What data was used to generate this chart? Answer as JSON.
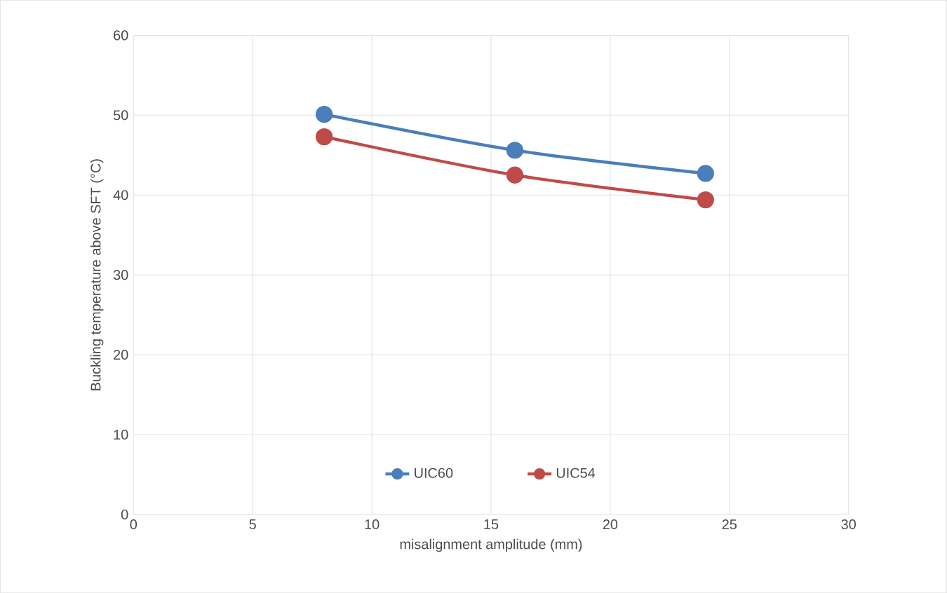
{
  "chart_data": {
    "type": "line",
    "xlabel": "misalignment amplitude (mm)",
    "ylabel": "Buckling temperature above SFT (°C)",
    "x": [
      8,
      16,
      24
    ],
    "series": [
      {
        "name": "UIC60",
        "color": "#4a7ebb",
        "values": [
          50.1,
          45.6,
          42.7
        ]
      },
      {
        "name": "UIC54",
        "color": "#be4b48",
        "values": [
          47.3,
          42.5,
          39.4
        ]
      }
    ],
    "xlim": [
      0,
      30
    ],
    "ylim": [
      0,
      60
    ],
    "xticks": [
      0,
      5,
      10,
      15,
      20,
      25,
      30
    ],
    "yticks": [
      0,
      10,
      20,
      30,
      40,
      50,
      60
    ],
    "grid": true,
    "legend": "bottom",
    "marker": "circle",
    "line_style": "solid"
  }
}
